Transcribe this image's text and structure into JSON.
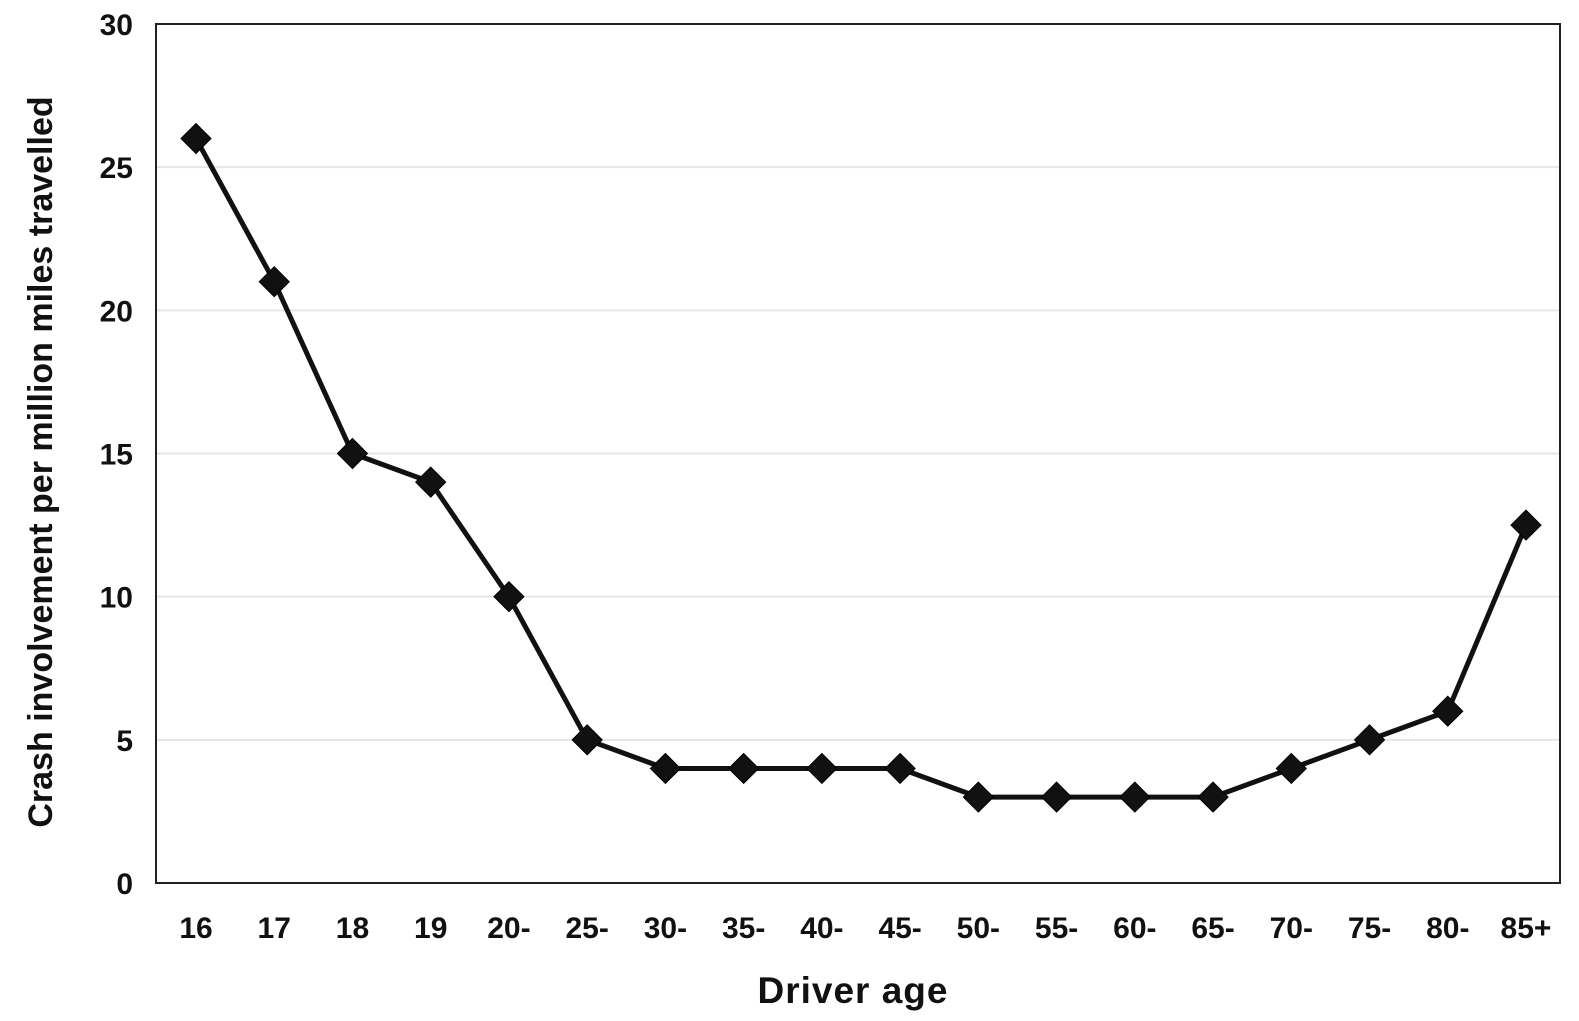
{
  "chart_data": {
    "type": "line",
    "xlabel": "Driver age",
    "ylabel": "Crash involvement per million miles travelled",
    "categories": [
      "16",
      "17",
      "18",
      "19",
      "20-",
      "25-",
      "30-",
      "35-",
      "40-",
      "45-",
      "50-",
      "55-",
      "60-",
      "65-",
      "70-",
      "75-",
      "80-",
      "85+"
    ],
    "series": [
      {
        "values": [
          26,
          21,
          15,
          14,
          10,
          5,
          4,
          4,
          4,
          4,
          3,
          3,
          3,
          3,
          4,
          5,
          6,
          12.5
        ]
      }
    ],
    "ylim": [
      0,
      30
    ],
    "yticks": [
      0,
      5,
      10,
      15,
      20,
      25,
      30
    ],
    "grid": true,
    "legend": "none",
    "colors": {
      "line": "#111111",
      "marker": "#111111",
      "grid": "#e6e6e6",
      "frame": "#222222"
    }
  }
}
